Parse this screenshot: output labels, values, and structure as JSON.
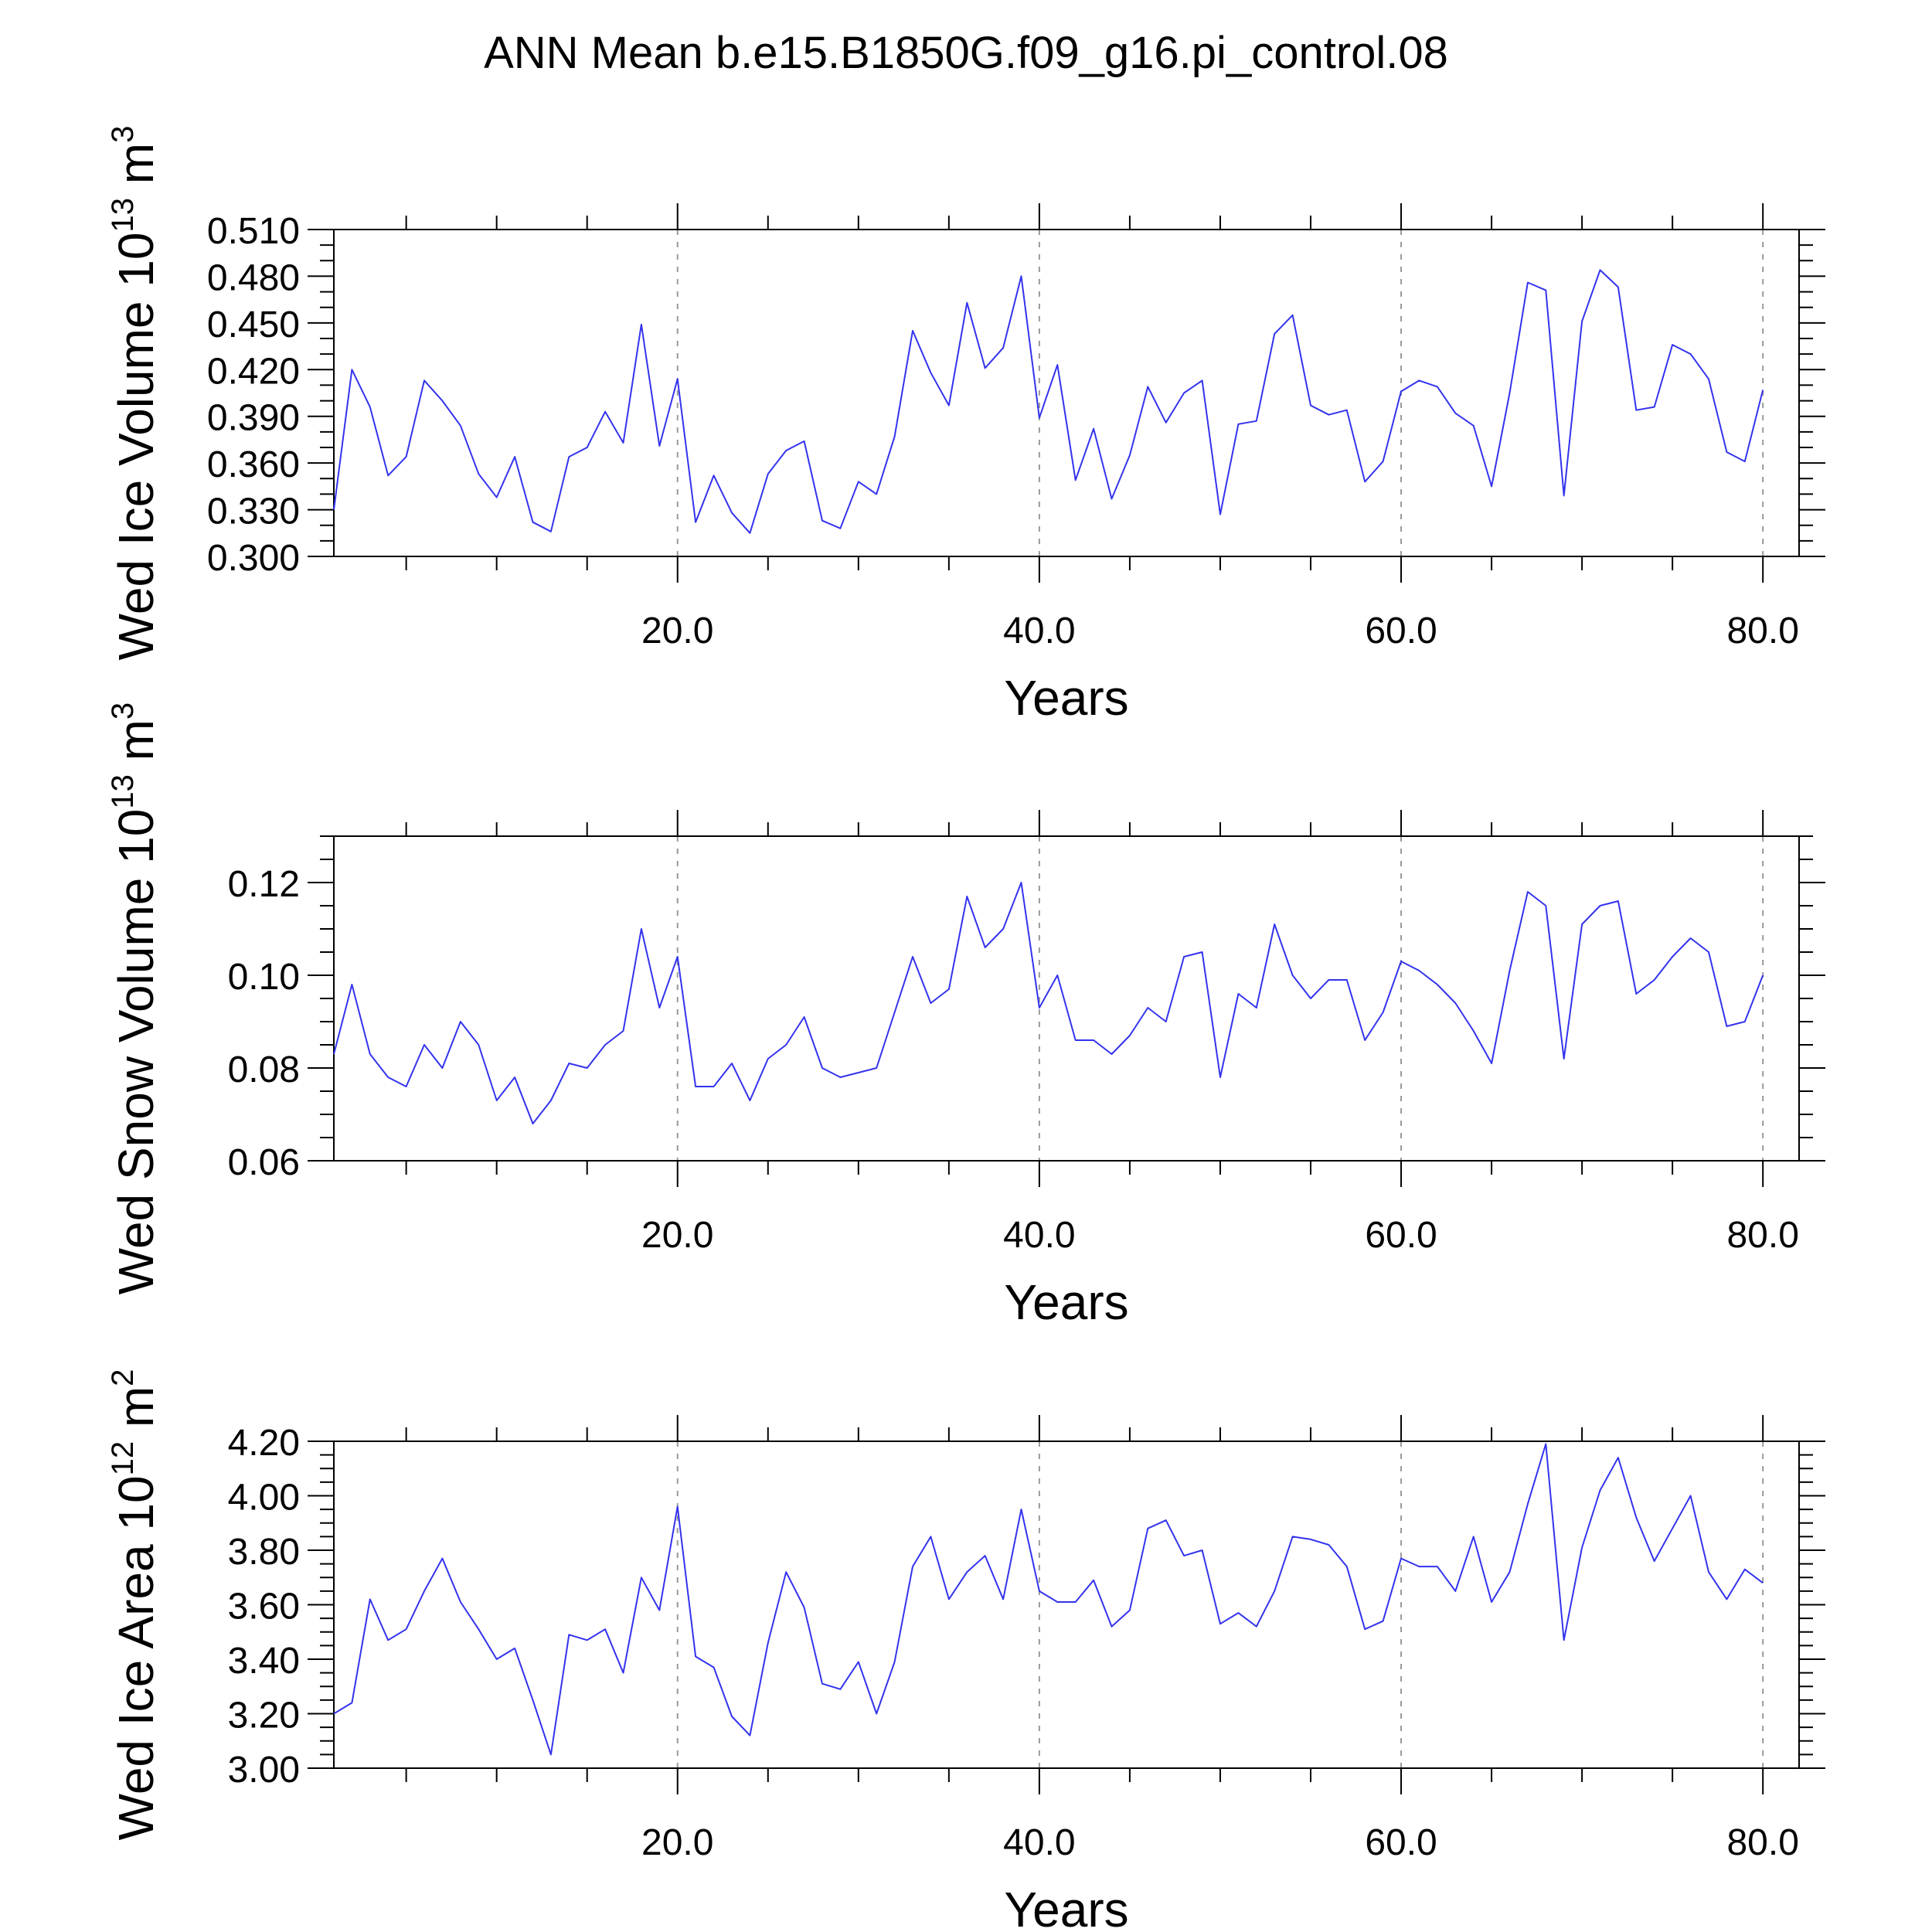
{
  "page_title": "ANN Mean b.e15.B1850G.f09_g16.pi_control.08",
  "chart_data": [
    {
      "type": "line",
      "ylabel": "Wed Ice Volume 10",
      "ylabel_exp": "13",
      "ylabel_unit": " m",
      "ylabel_unit_exp": "3",
      "xlabel": "Years",
      "xlim": [
        1,
        82
      ],
      "ylim": [
        0.3,
        0.51
      ],
      "yticks": [
        0.3,
        0.33,
        0.36,
        0.39,
        0.42,
        0.45,
        0.48,
        0.51
      ],
      "ytick_labels": [
        "0.300",
        "0.330",
        "0.360",
        "0.390",
        "0.420",
        "0.450",
        "0.480",
        "0.510"
      ],
      "yminor": 0.01,
      "xticks": [
        20,
        40,
        60,
        80
      ],
      "xtick_labels": [
        "20.0",
        "40.0",
        "60.0",
        "80.0"
      ],
      "xminor": 5,
      "grid_x": [
        20,
        40,
        60,
        80
      ],
      "color": "#3333ee",
      "x": [
        1,
        2,
        3,
        4,
        5,
        6,
        7,
        8,
        9,
        10,
        11,
        12,
        13,
        14,
        15,
        16,
        17,
        18,
        19,
        20,
        21,
        22,
        23,
        24,
        25,
        26,
        27,
        28,
        29,
        30,
        31,
        32,
        33,
        34,
        35,
        36,
        37,
        38,
        39,
        40,
        41,
        42,
        43,
        44,
        45,
        46,
        47,
        48,
        49,
        50,
        51,
        52,
        53,
        54,
        55,
        56,
        57,
        58,
        59,
        60,
        61,
        62,
        63,
        64,
        65,
        66,
        67,
        68,
        69,
        70,
        71,
        72,
        73,
        74,
        75,
        76,
        77,
        78,
        79,
        80
      ],
      "values": [
        0.33,
        0.42,
        0.396,
        0.352,
        0.364,
        0.413,
        0.4,
        0.384,
        0.353,
        0.338,
        0.364,
        0.322,
        0.316,
        0.364,
        0.37,
        0.393,
        0.373,
        0.449,
        0.371,
        0.414,
        0.322,
        0.352,
        0.328,
        0.315,
        0.353,
        0.368,
        0.374,
        0.323,
        0.318,
        0.348,
        0.34,
        0.377,
        0.445,
        0.418,
        0.397,
        0.463,
        0.421,
        0.434,
        0.48,
        0.389,
        0.423,
        0.349,
        0.382,
        0.337,
        0.365,
        0.409,
        0.386,
        0.405,
        0.413,
        0.327,
        0.385,
        0.387,
        0.443,
        0.455,
        0.397,
        0.391,
        0.394,
        0.348,
        0.361,
        0.406,
        0.413,
        0.409,
        0.392,
        0.384,
        0.345,
        0.405,
        0.476,
        0.471,
        0.339,
        0.451,
        0.484,
        0.473,
        0.394,
        0.396,
        0.436,
        0.43,
        0.414,
        0.367,
        0.361,
        0.407
      ]
    },
    {
      "type": "line",
      "ylabel": "Wed Snow Volume 10",
      "ylabel_exp": "13",
      "ylabel_unit": " m",
      "ylabel_unit_exp": "3",
      "xlabel": "Years",
      "xlim": [
        1,
        82
      ],
      "ylim": [
        0.06,
        0.13
      ],
      "yticks": [
        0.06,
        0.08,
        0.1,
        0.12
      ],
      "ytick_labels": [
        "0.06",
        "0.08",
        "0.10",
        "0.12"
      ],
      "yminor": 0.005,
      "xticks": [
        20,
        40,
        60,
        80
      ],
      "xtick_labels": [
        "20.0",
        "40.0",
        "60.0",
        "80.0"
      ],
      "xminor": 5,
      "grid_x": [
        20,
        40,
        60,
        80
      ],
      "color": "#3333ee",
      "x": [
        1,
        2,
        3,
        4,
        5,
        6,
        7,
        8,
        9,
        10,
        11,
        12,
        13,
        14,
        15,
        16,
        17,
        18,
        19,
        20,
        21,
        22,
        23,
        24,
        25,
        26,
        27,
        28,
        29,
        30,
        31,
        32,
        33,
        34,
        35,
        36,
        37,
        38,
        39,
        40,
        41,
        42,
        43,
        44,
        45,
        46,
        47,
        48,
        49,
        50,
        51,
        52,
        53,
        54,
        55,
        56,
        57,
        58,
        59,
        60,
        61,
        62,
        63,
        64,
        65,
        66,
        67,
        68,
        69,
        70,
        71,
        72,
        73,
        74,
        75,
        76,
        77,
        78,
        79,
        80
      ],
      "values": [
        0.083,
        0.098,
        0.083,
        0.078,
        0.076,
        0.085,
        0.08,
        0.09,
        0.085,
        0.073,
        0.078,
        0.068,
        0.073,
        0.081,
        0.08,
        0.085,
        0.088,
        0.11,
        0.093,
        0.104,
        0.076,
        0.076,
        0.081,
        0.073,
        0.082,
        0.085,
        0.091,
        0.08,
        0.078,
        0.079,
        0.08,
        0.092,
        0.104,
        0.094,
        0.097,
        0.117,
        0.106,
        0.11,
        0.12,
        0.093,
        0.1,
        0.086,
        0.086,
        0.083,
        0.087,
        0.093,
        0.09,
        0.104,
        0.105,
        0.078,
        0.096,
        0.093,
        0.111,
        0.1,
        0.095,
        0.099,
        0.099,
        0.086,
        0.092,
        0.103,
        0.101,
        0.098,
        0.094,
        0.088,
        0.081,
        0.101,
        0.118,
        0.115,
        0.082,
        0.111,
        0.115,
        0.116,
        0.096,
        0.099,
        0.104,
        0.108,
        0.105,
        0.089,
        0.09,
        0.1
      ]
    },
    {
      "type": "line",
      "ylabel": "Wed Ice Area 10",
      "ylabel_exp": "12",
      "ylabel_unit": " m",
      "ylabel_unit_exp": "2",
      "xlabel": "Years",
      "xlim": [
        1,
        82
      ],
      "ylim": [
        3.0,
        4.2
      ],
      "yticks": [
        3.0,
        3.2,
        3.4,
        3.6,
        3.8,
        4.0,
        4.2
      ],
      "ytick_labels": [
        "3.00",
        "3.20",
        "3.40",
        "3.60",
        "3.80",
        "4.00",
        "4.20"
      ],
      "yminor": 0.05,
      "xticks": [
        20,
        40,
        60,
        80
      ],
      "xtick_labels": [
        "20.0",
        "40.0",
        "60.0",
        "80.0"
      ],
      "xminor": 5,
      "grid_x": [
        20,
        40,
        60,
        80
      ],
      "color": "#3333ee",
      "x": [
        1,
        2,
        3,
        4,
        5,
        6,
        7,
        8,
        9,
        10,
        11,
        12,
        13,
        14,
        15,
        16,
        17,
        18,
        19,
        20,
        21,
        22,
        23,
        24,
        25,
        26,
        27,
        28,
        29,
        30,
        31,
        32,
        33,
        34,
        35,
        36,
        37,
        38,
        39,
        40,
        41,
        42,
        43,
        44,
        45,
        46,
        47,
        48,
        49,
        50,
        51,
        52,
        53,
        54,
        55,
        56,
        57,
        58,
        59,
        60,
        61,
        62,
        63,
        64,
        65,
        66,
        67,
        68,
        69,
        70,
        71,
        72,
        73,
        74,
        75,
        76,
        77,
        78,
        79,
        80
      ],
      "values": [
        3.2,
        3.24,
        3.62,
        3.47,
        3.51,
        3.65,
        3.77,
        3.61,
        3.51,
        3.4,
        3.44,
        3.25,
        3.05,
        3.49,
        3.47,
        3.51,
        3.35,
        3.7,
        3.58,
        3.96,
        3.41,
        3.37,
        3.19,
        3.12,
        3.46,
        3.72,
        3.59,
        3.31,
        3.29,
        3.39,
        3.2,
        3.39,
        3.74,
        3.85,
        3.62,
        3.72,
        3.78,
        3.62,
        3.95,
        3.65,
        3.61,
        3.61,
        3.69,
        3.52,
        3.58,
        3.88,
        3.91,
        3.78,
        3.8,
        3.53,
        3.57,
        3.52,
        3.65,
        3.85,
        3.84,
        3.82,
        3.74,
        3.51,
        3.54,
        3.77,
        3.74,
        3.74,
        3.65,
        3.85,
        3.61,
        3.72,
        3.97,
        4.19,
        3.47,
        3.81,
        4.02,
        4.14,
        3.92,
        3.76,
        3.88,
        4.0,
        3.72,
        3.62,
        3.73,
        3.68
      ]
    }
  ]
}
